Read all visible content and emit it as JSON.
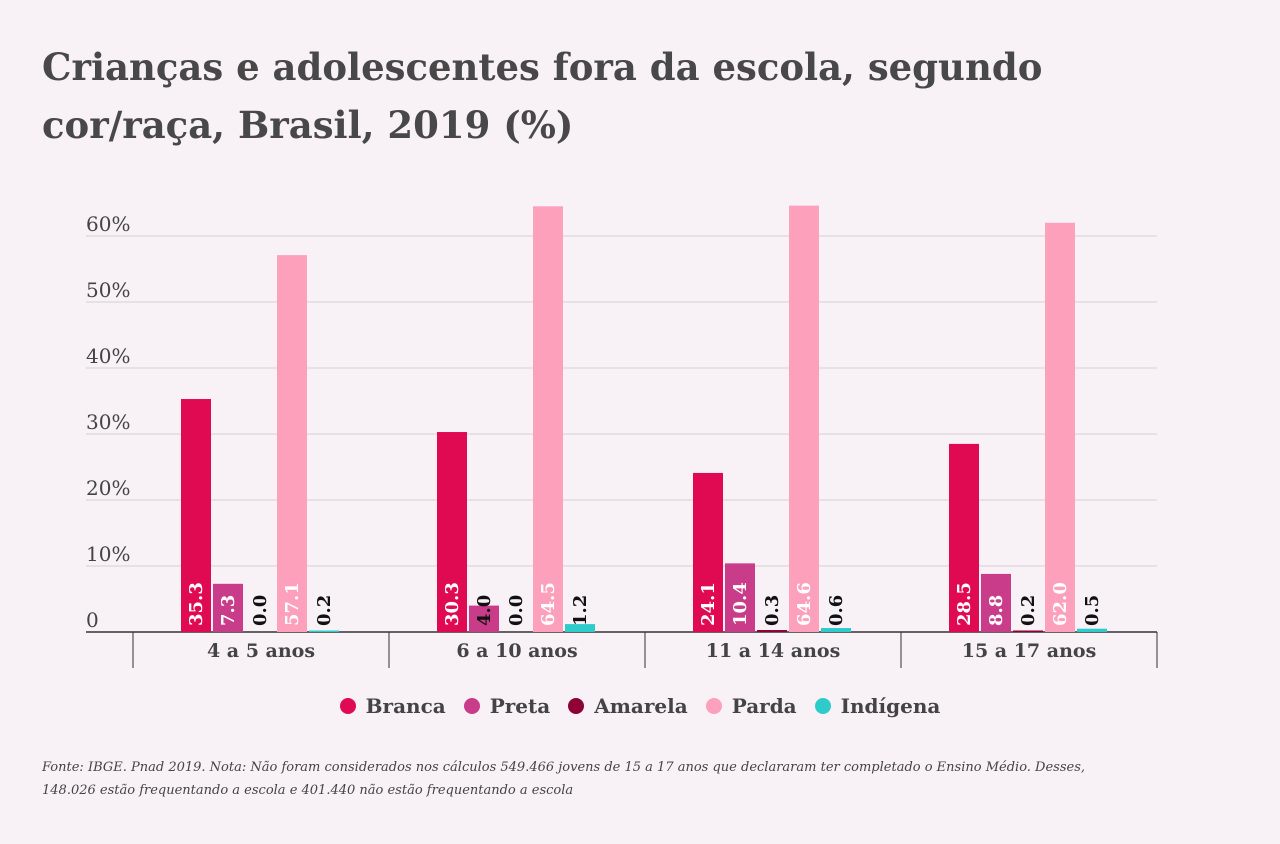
{
  "title": "Crianças e adolescentes fora da escola, segundo cor/raça, Brasil, 2019 (%)",
  "source": "Fonte: IBGE. Pnad 2019. Nota: Não foram considerados nos cálculos 549.466 jovens de 15 a 17 anos que declararam ter completado o Ensino Médio. Desses, 148.026 estão frequentando a escola e 401.440 não estão frequentando a escola",
  "chart_data": {
    "type": "bar",
    "categories": [
      "4 a 5 anos",
      "6 a 10 anos",
      "11 a 14 anos",
      "15 a 17 anos"
    ],
    "series": [
      {
        "name": "Branca",
        "color": "#df0a52",
        "values": [
          35.3,
          30.3,
          24.1,
          28.5
        ],
        "labels": [
          "35.3",
          "30.3",
          "24.1",
          "28.5"
        ]
      },
      {
        "name": "Preta",
        "color": "#c83c8a",
        "values": [
          7.3,
          4.0,
          10.4,
          8.8
        ],
        "labels": [
          "7.3",
          "4.0",
          "10.4",
          "8.8"
        ]
      },
      {
        "name": "Amarela",
        "color": "#8f0035",
        "values": [
          0.0,
          0.0,
          0.3,
          0.2
        ],
        "labels": [
          "0.0",
          "0.0",
          "0.3",
          "0.2"
        ]
      },
      {
        "name": "Parda",
        "color": "#fda0bc",
        "values": [
          57.1,
          64.5,
          64.6,
          62.0
        ],
        "labels": [
          "57.1",
          "64.5",
          "64.6",
          "62.0"
        ]
      },
      {
        "name": "Indígena",
        "color": "#2ecbcb",
        "values": [
          0.2,
          1.2,
          0.6,
          0.5
        ],
        "labels": [
          "0.2",
          "1.2",
          "0.6",
          "0.5"
        ]
      }
    ],
    "yticks": [
      0,
      10,
      20,
      30,
      40,
      50,
      60
    ],
    "ytick_labels": [
      "0",
      "10%",
      "20%",
      "30%",
      "40%",
      "50%",
      "60%"
    ],
    "ylim": [
      0,
      65
    ],
    "grid": true,
    "legend_position": "bottom-center",
    "label_color_inside": "#ffffff",
    "label_color_outside": "#111111"
  }
}
